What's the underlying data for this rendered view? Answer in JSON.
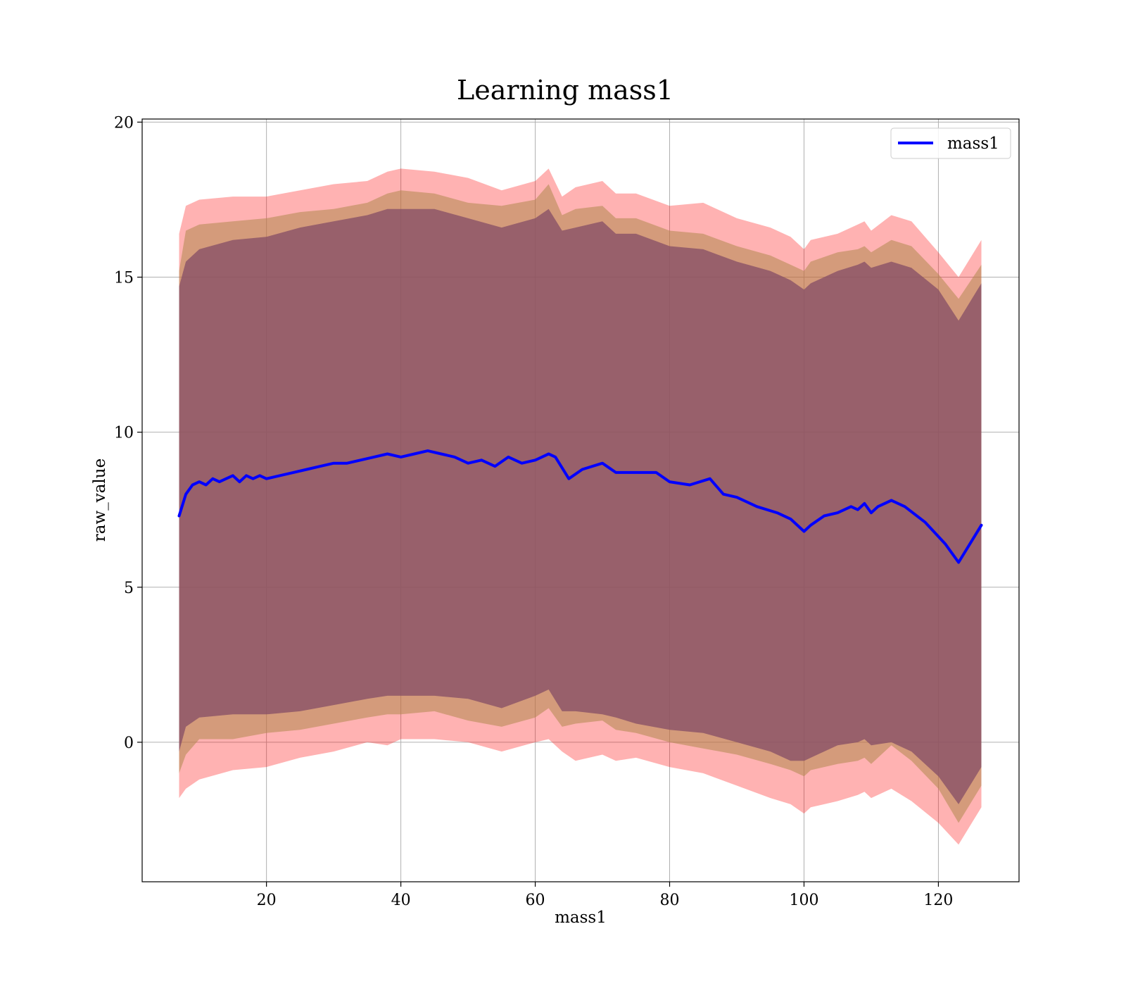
{
  "chart_data": {
    "type": "line",
    "title": "Learning mass1",
    "xlabel": "mass1",
    "ylabel": "raw_value",
    "xlim": [
      1.5,
      132
    ],
    "ylim": [
      -4.5,
      20.1
    ],
    "xticks": [
      20,
      40,
      60,
      80,
      100,
      120
    ],
    "yticks": [
      0,
      5,
      10,
      15,
      20
    ],
    "grid": true,
    "legend_position": "top-right",
    "series": [
      {
        "name": "mass1",
        "color": "#0000ff",
        "x": [
          7,
          8,
          9,
          10,
          11,
          12,
          13,
          14,
          15,
          16,
          17,
          18,
          19,
          20,
          22,
          24,
          26,
          28,
          30,
          32,
          34,
          36,
          38,
          40,
          42,
          44,
          46,
          48,
          50,
          52,
          54,
          56,
          58,
          60,
          62,
          63,
          65,
          67,
          70,
          72,
          75,
          78,
          80,
          83,
          86,
          88,
          90,
          93,
          96,
          98,
          100,
          101,
          103,
          105,
          107,
          108,
          109,
          110,
          111,
          113,
          115,
          118,
          121,
          123,
          126.4
        ],
        "y": [
          7.3,
          8.0,
          8.3,
          8.4,
          8.3,
          8.5,
          8.4,
          8.5,
          8.6,
          8.4,
          8.6,
          8.5,
          8.6,
          8.5,
          8.6,
          8.7,
          8.8,
          8.9,
          9.0,
          9.0,
          9.1,
          9.2,
          9.3,
          9.2,
          9.3,
          9.4,
          9.3,
          9.2,
          9.0,
          9.1,
          8.9,
          9.2,
          9.0,
          9.1,
          9.3,
          9.2,
          8.5,
          8.8,
          9.0,
          8.7,
          8.7,
          8.7,
          8.4,
          8.3,
          8.5,
          8.0,
          7.9,
          7.6,
          7.4,
          7.2,
          6.8,
          7.0,
          7.3,
          7.4,
          7.6,
          7.5,
          7.7,
          7.4,
          7.6,
          7.8,
          7.6,
          7.1,
          6.4,
          5.8,
          7.0
        ]
      }
    ],
    "bands": [
      {
        "role": "outer",
        "color": "#ff0000",
        "opacity": 0.3,
        "x": [
          7,
          8,
          10,
          15,
          20,
          25,
          30,
          35,
          38,
          40,
          45,
          50,
          55,
          60,
          62,
          64,
          66,
          70,
          72,
          75,
          80,
          85,
          90,
          95,
          98,
          100,
          101,
          105,
          108,
          109,
          110,
          113,
          116,
          120,
          123,
          126.4
        ],
        "lower": [
          -1.8,
          -1.5,
          -1.2,
          -0.9,
          -0.8,
          -0.5,
          -0.3,
          0.0,
          -0.1,
          0.1,
          0.1,
          0.0,
          -0.3,
          0.0,
          0.1,
          -0.3,
          -0.6,
          -0.4,
          -0.6,
          -0.5,
          -0.8,
          -1.0,
          -1.4,
          -1.8,
          -2.0,
          -2.3,
          -2.1,
          -1.9,
          -1.7,
          -1.6,
          -1.8,
          -1.5,
          -1.9,
          -2.6,
          -3.3,
          -2.1
        ],
        "upper": [
          16.4,
          17.3,
          17.5,
          17.6,
          17.6,
          17.8,
          18.0,
          18.1,
          18.4,
          18.5,
          18.4,
          18.2,
          17.8,
          18.1,
          18.5,
          17.6,
          17.9,
          18.1,
          17.7,
          17.7,
          17.3,
          17.4,
          16.9,
          16.6,
          16.3,
          15.9,
          16.2,
          16.4,
          16.7,
          16.8,
          16.5,
          17.0,
          16.8,
          15.8,
          15.0,
          16.2
        ]
      },
      {
        "role": "middle",
        "color": "#b0884f",
        "opacity": 0.55,
        "x": [
          7,
          8,
          10,
          15,
          20,
          25,
          30,
          35,
          38,
          40,
          45,
          50,
          55,
          60,
          62,
          64,
          66,
          70,
          72,
          75,
          80,
          85,
          90,
          95,
          98,
          100,
          101,
          105,
          108,
          109,
          110,
          113,
          116,
          120,
          123,
          126.4
        ],
        "lower": [
          -1.0,
          -0.4,
          0.1,
          0.1,
          0.3,
          0.4,
          0.6,
          0.8,
          0.9,
          0.9,
          1.0,
          0.7,
          0.5,
          0.8,
          1.1,
          0.5,
          0.6,
          0.7,
          0.4,
          0.3,
          0.0,
          -0.2,
          -0.4,
          -0.7,
          -0.9,
          -1.1,
          -0.9,
          -0.7,
          -0.6,
          -0.5,
          -0.7,
          -0.1,
          -0.6,
          -1.5,
          -2.6,
          -1.4
        ],
        "upper": [
          15.2,
          16.5,
          16.7,
          16.8,
          16.9,
          17.1,
          17.2,
          17.4,
          17.7,
          17.8,
          17.7,
          17.4,
          17.3,
          17.5,
          18.0,
          17.0,
          17.2,
          17.3,
          16.9,
          16.9,
          16.5,
          16.4,
          16.0,
          15.7,
          15.4,
          15.2,
          15.5,
          15.8,
          15.9,
          16.0,
          15.8,
          16.2,
          16.0,
          15.1,
          14.3,
          15.4
        ]
      },
      {
        "role": "inner",
        "color": "#875066",
        "opacity": 0.78,
        "x": [
          7,
          8,
          10,
          15,
          20,
          25,
          30,
          35,
          38,
          40,
          45,
          50,
          55,
          60,
          62,
          64,
          66,
          70,
          72,
          75,
          80,
          85,
          90,
          95,
          98,
          100,
          101,
          105,
          108,
          109,
          110,
          113,
          116,
          120,
          123,
          126.4
        ],
        "lower": [
          -0.3,
          0.5,
          0.8,
          0.9,
          0.9,
          1.0,
          1.2,
          1.4,
          1.5,
          1.5,
          1.5,
          1.4,
          1.1,
          1.5,
          1.7,
          1.0,
          1.0,
          0.9,
          0.8,
          0.6,
          0.4,
          0.3,
          0.0,
          -0.3,
          -0.6,
          -0.6,
          -0.5,
          -0.1,
          0.0,
          0.1,
          -0.1,
          0.0,
          -0.3,
          -1.1,
          -2.0,
          -0.8
        ],
        "upper": [
          14.7,
          15.5,
          15.9,
          16.2,
          16.3,
          16.6,
          16.8,
          17.0,
          17.2,
          17.2,
          17.2,
          16.9,
          16.6,
          16.9,
          17.2,
          16.5,
          16.6,
          16.8,
          16.4,
          16.4,
          16.0,
          15.9,
          15.5,
          15.2,
          14.9,
          14.6,
          14.8,
          15.2,
          15.4,
          15.5,
          15.3,
          15.5,
          15.3,
          14.6,
          13.6,
          14.8
        ]
      }
    ]
  }
}
